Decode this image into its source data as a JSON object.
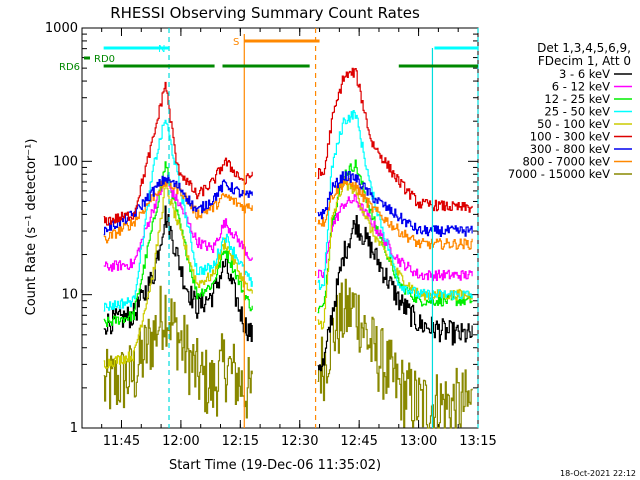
{
  "chart_data": {
    "type": "line",
    "title": "RHESSI Observing Summary Count Rates",
    "xlabel": "Start Time (19-Dec-06 11:35:02)",
    "ylabel": "Count Rate (s⁻¹ detector⁻¹)",
    "x_ticks": [
      "11:45",
      "12:00",
      "12:15",
      "12:30",
      "12:45",
      "13:00",
      "13:15"
    ],
    "y_ticks": [
      "1",
      "10",
      "100",
      "1000"
    ],
    "ylim": [
      1,
      1000
    ],
    "yscale": "log",
    "xlim": [
      "11:35:02",
      "13:15:00"
    ],
    "legend_header": [
      "Det 1,3,4,5,6,9,",
      "FDecim 1, Att 0"
    ],
    "legend_position": "right",
    "footer": "18-Oct-2021 22:12",
    "series": [
      {
        "name": "3 - 6 keV",
        "color": "#000000"
      },
      {
        "name": "6 - 12 keV",
        "color": "#ff00ff"
      },
      {
        "name": "12 - 25 keV",
        "color": "#00ee00"
      },
      {
        "name": "25 - 50 keV",
        "color": "#00ffff"
      },
      {
        "name": "50 - 100 keV",
        "color": "#cccc00"
      },
      {
        "name": "100 - 300 keV",
        "color": "#dd0000"
      },
      {
        "name": "300 - 800 keV",
        "color": "#0000ee"
      },
      {
        "name": "800 - 7000 keV",
        "color": "#ff8800"
      },
      {
        "name": "7000 - 15000 keV",
        "color": "#888800"
      }
    ],
    "flag_bars": [
      {
        "label": "N",
        "color": "#00ffff",
        "segments": [
          [
            "11:40:30",
            "11:57:00"
          ],
          [
            "13:04:00",
            "13:15:00"
          ]
        ]
      },
      {
        "label": "RD0",
        "color": "#008800",
        "segments": []
      },
      {
        "label": "RD6",
        "color": "#008800",
        "segments": [
          [
            "11:40:30",
            "12:08:30"
          ],
          [
            "12:10:30",
            "12:32:30"
          ],
          [
            "12:55:00",
            "13:15:00"
          ]
        ]
      },
      {
        "label": "S",
        "color": "#ff8800",
        "segments": [
          [
            "12:16:00",
            "12:35:00"
          ]
        ]
      }
    ],
    "markers": {
      "night_vlines": [
        "11:57:00",
        "13:15:00"
      ],
      "saa_vlines": [
        "12:34:00"
      ],
      "saa_solid_vline": "12:16:00",
      "green_vline": "13:03:30",
      "data_gaps": [
        [
          "12:18:00",
          "12:34:00"
        ]
      ]
    }
  }
}
